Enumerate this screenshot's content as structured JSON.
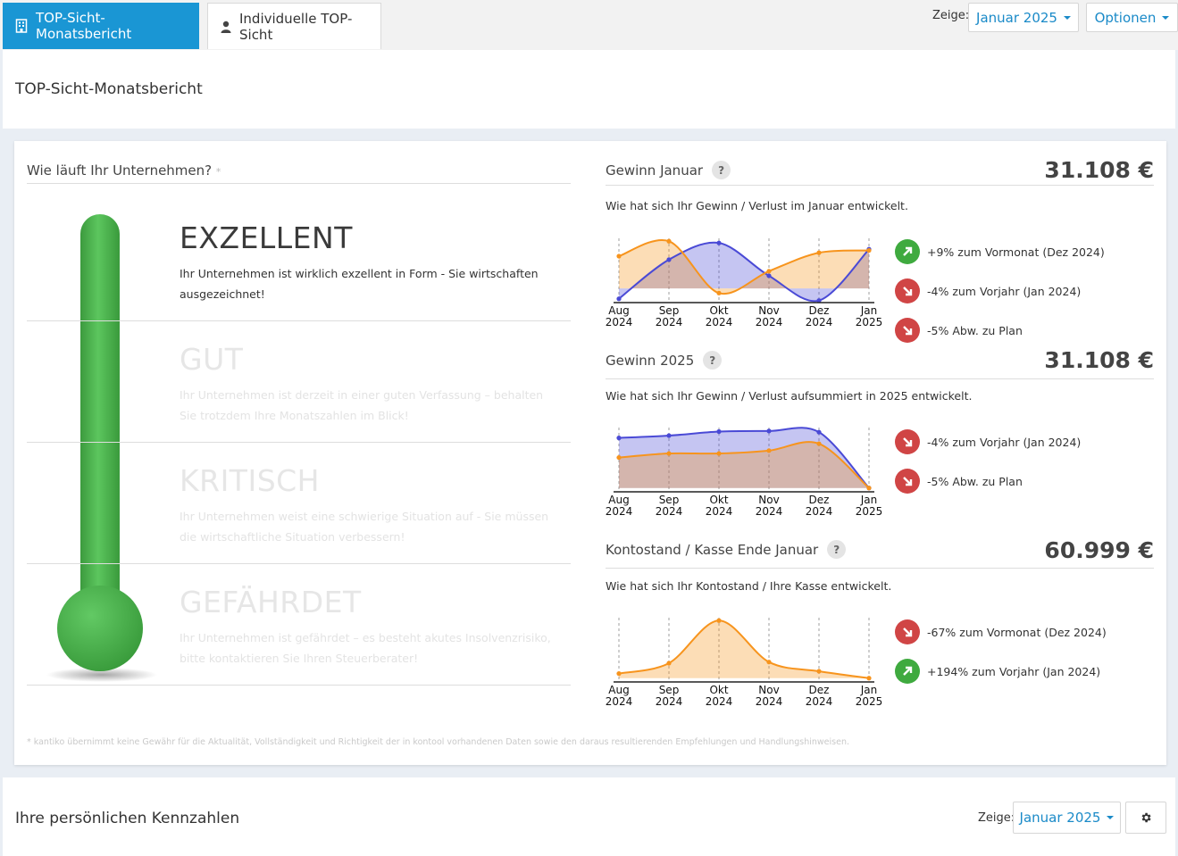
{
  "tabs": [
    {
      "label": "TOP-Sicht-Monatsbericht",
      "icon": "building-icon",
      "active": true
    },
    {
      "label": "Individuelle TOP-Sicht",
      "icon": "user-icon",
      "active": false
    }
  ],
  "toolbar": {
    "show_label": "Zeige:",
    "period": "Januar 2025",
    "options": "Optionen"
  },
  "page_title": "TOP-Sicht-Monatsbericht",
  "status": {
    "question": "Wie läuft Ihr Unternehmen?",
    "asterisk": "*",
    "levels": [
      {
        "name": "EXZELLENT",
        "desc": "Ihr Unternehmen ist wirklich exzellent in Form - Sie wirtschaften ausgezeichnet!",
        "active": true
      },
      {
        "name": "GUT",
        "desc": "Ihr Unternehmen ist derzeit in einer guten Verfassung – behalten Sie trotzdem Ihre Monatszahlen im Blick!",
        "active": false
      },
      {
        "name": "KRITISCH",
        "desc": "Ihr Unternehmen weist eine schwierige Situation auf - Sie müssen die wirtschaftliche Situation verbessern!",
        "active": false
      },
      {
        "name": "GEFÄHRDET",
        "desc": "Ihr Unternehmen ist gefährdet – es besteht akutes Insolvenzrisiko, bitte kontaktieren Sie Ihren Steuerberater!",
        "active": false
      }
    ],
    "disclaimer": "* kantiko übernimmt keine Gewähr für die Aktualität, Vollständigkeit und Richtigkeit der in kontool vorhandenen Daten sowie den daraus resultierenden Empfehlungen und Handlungshinweisen."
  },
  "colors": {
    "accent": "#1a96d4",
    "series_blue": "#4a4ad6",
    "series_orange": "#f7941d",
    "up": "#3faa3f",
    "down": "#d04545",
    "thermo": "#47b24a"
  },
  "chart_data": [
    {
      "type": "area",
      "title": "Gewinn Januar",
      "value": "31.108 €",
      "subtitle": "Wie hat sich Ihr Gewinn / Verlust im Januar entwickelt.",
      "categories": [
        [
          "Aug",
          "2024"
        ],
        [
          "Sep",
          "2024"
        ],
        [
          "Okt",
          "2024"
        ],
        [
          "Nov",
          "2024"
        ],
        [
          "Dez",
          "2024"
        ],
        [
          "Jan",
          "2025"
        ]
      ],
      "series": [
        {
          "values": [
            0.0,
            0.68,
            0.97,
            0.4,
            -0.03,
            0.86
          ],
          "color": "#4a4ad6"
        },
        {
          "values": [
            0.74,
            1.0,
            0.1,
            0.48,
            0.8,
            0.84
          ],
          "color": "#f7941d"
        }
      ],
      "baseline": 0.18,
      "ylim": [
        -0.05,
        1.05
      ],
      "deltas": [
        {
          "dir": "up",
          "text": "+9% zum Vormonat (Dez 2024)"
        },
        {
          "dir": "down",
          "text": "-4% zum Vorjahr (Jan 2024)"
        },
        {
          "dir": "down",
          "text": "-5% Abw. zu Plan"
        }
      ]
    },
    {
      "type": "area",
      "title": "Gewinn 2025",
      "value": "31.108 €",
      "subtitle": "Wie hat sich Ihr Gewinn / Verlust aufsummiert in 2025 entwickelt.",
      "categories": [
        [
          "Aug",
          "2024"
        ],
        [
          "Sep",
          "2024"
        ],
        [
          "Okt",
          "2024"
        ],
        [
          "Nov",
          "2024"
        ],
        [
          "Dez",
          "2024"
        ],
        [
          "Jan",
          "2025"
        ]
      ],
      "series": [
        {
          "values": [
            0.87,
            0.91,
            0.98,
            0.99,
            0.97,
            0.0
          ],
          "color": "#4a4ad6"
        },
        {
          "values": [
            0.53,
            0.6,
            0.6,
            0.65,
            0.77,
            0.0
          ],
          "color": "#f7941d"
        }
      ],
      "baseline": 0.0,
      "ylim": [
        -0.05,
        1.05
      ],
      "deltas": [
        {
          "dir": "down",
          "text": "-4% zum Vorjahr (Jan 2024)"
        },
        {
          "dir": "down",
          "text": "-5% Abw. zu Plan"
        }
      ]
    },
    {
      "type": "area",
      "title": "Kontostand / Kasse Ende Januar",
      "value": "60.999 €",
      "subtitle": "Wie hat sich Ihr Kontostand / Ihre Kasse entwickelt.",
      "categories": [
        [
          "Aug",
          "2024"
        ],
        [
          "Sep",
          "2024"
        ],
        [
          "Okt",
          "2024"
        ],
        [
          "Nov",
          "2024"
        ],
        [
          "Dez",
          "2024"
        ],
        [
          "Jan",
          "2025"
        ]
      ],
      "series": [
        {
          "values": [
            0.08,
            0.26,
            1.0,
            0.28,
            0.12,
            0.0
          ],
          "color": "#f7941d"
        }
      ],
      "baseline": 0.0,
      "ylim": [
        -0.05,
        1.05
      ],
      "deltas": [
        {
          "dir": "down",
          "text": "-67% zum Vormonat (Dez 2024)"
        },
        {
          "dir": "up",
          "text": "+194% zum Vorjahr (Jan 2024)"
        }
      ]
    }
  ],
  "bottom": {
    "title": "Ihre persönlichen Kennzahlen",
    "show_label": "Zeige:",
    "period": "Januar 2025"
  }
}
